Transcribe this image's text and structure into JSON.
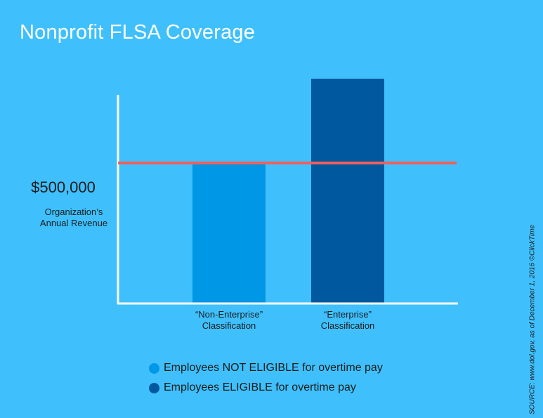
{
  "title": "Nonprofit FLSA Coverage",
  "threshold": {
    "value_label": "$500,000",
    "caption_line1": "Organization’s",
    "caption_line2": "Annual Revenue"
  },
  "legend": [
    {
      "label": "Employees NOT ELIGIBLE for overtime pay",
      "color": "#0097e6"
    },
    {
      "label": "Employees ELIGIBLE for overtime pay",
      "color": "#00589e"
    }
  ],
  "source": "SOURCE: www.dol.gov, as of December 1, 2016 ©ClickTime",
  "colors": {
    "background": "#3fc0fd",
    "axis": "#ffffff",
    "threshold_line": "#f0605a"
  },
  "chart_data": {
    "type": "bar",
    "title": "Nonprofit FLSA Coverage",
    "categories": [
      [
        "“Non-Enterprise”",
        "Classification"
      ],
      [
        "“Enterprise”",
        "Classification"
      ]
    ],
    "values": [
      500000,
      800000
    ],
    "colors": [
      "#0097e6",
      "#00589e"
    ],
    "ylim": [
      0,
      1000000
    ],
    "threshold": 500000,
    "xlabel": "",
    "ylabel": "",
    "grid": false
  }
}
